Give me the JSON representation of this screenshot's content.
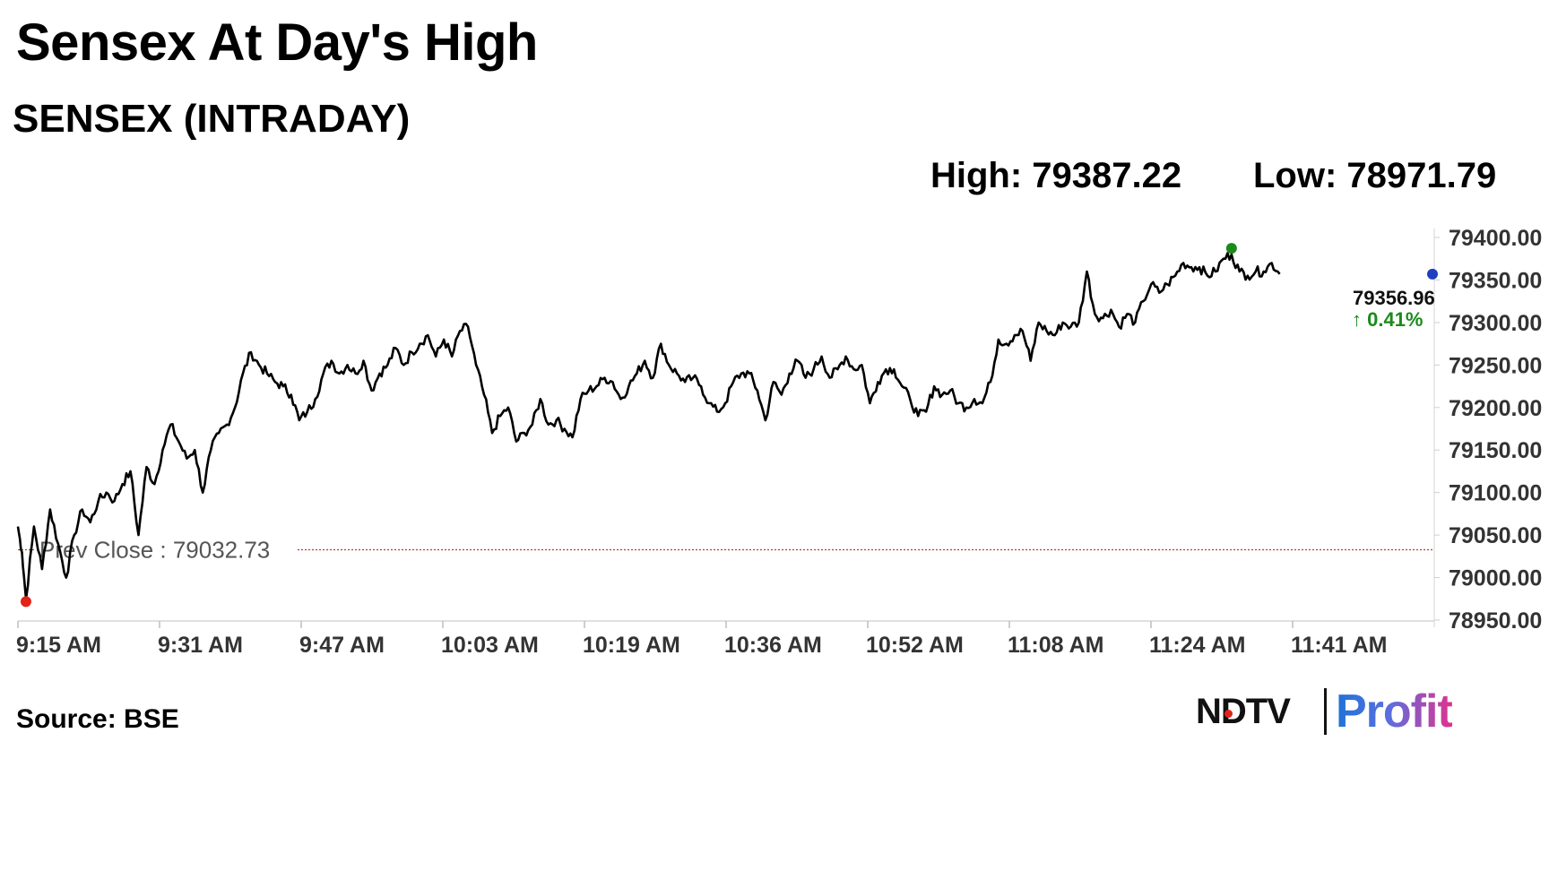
{
  "headline": "Sensex At Day's High",
  "source": "Source: BSE",
  "brand": {
    "left": "NDTV",
    "right": "Profit"
  },
  "colors": {
    "line": "#000000",
    "prev_close": "#c0392b",
    "up": "#1a8a1a",
    "high_marker": "#1a8a1a",
    "low_marker": "#e2231a",
    "last_marker": "#1f3fbf",
    "brand_blue": "#1e73d6",
    "brand_pink": "#e0328f"
  },
  "chart_data": {
    "type": "line",
    "title": "SENSEX (INTRADAY)",
    "stats": {
      "high_label": "High: 79387.22",
      "low_label": "Low: 78971.79"
    },
    "x_tick_labels": [
      "9:15 AM",
      "9:31 AM",
      "9:47 AM",
      "10:03 AM",
      "10:19 AM",
      "10:36 AM",
      "10:52 AM",
      "11:08 AM",
      "11:24 AM",
      "11:41 AM"
    ],
    "x_range_minutes": [
      0,
      176
    ],
    "y_tick_labels": [
      "79400.00",
      "79350.00",
      "79300.00",
      "79250.00",
      "79200.00",
      "79150.00",
      "79100.00",
      "79050.00",
      "79000.00",
      "78950.00"
    ],
    "ylim": [
      78950,
      79400
    ],
    "grid": false,
    "prev_close": {
      "label": "Prev Close : 79032.73",
      "value": 79032.73
    },
    "last": {
      "value_label": "79356.96",
      "change_label": "0.41%",
      "value": 79356.96,
      "x_minutes": 176
    },
    "high_point": {
      "x_minutes": 151,
      "value": 79387.22
    },
    "low_point": {
      "x_minutes": 1,
      "value": 78971.79
    },
    "series": [
      {
        "x_minutes": [
          0,
          0.5,
          1,
          2,
          3,
          4,
          5,
          6,
          7,
          8,
          9,
          10,
          11,
          12,
          13,
          14,
          15,
          16,
          17,
          18,
          19,
          20,
          21,
          22,
          23,
          24,
          25,
          26,
          27,
          28,
          29,
          30,
          31,
          32,
          33,
          34,
          35,
          36,
          37,
          38,
          39,
          40,
          41,
          42,
          43,
          44,
          45,
          46,
          47,
          48,
          49,
          50,
          51,
          52,
          53,
          54,
          55,
          56,
          57,
          58,
          59,
          60,
          61,
          62,
          63,
          64,
          65,
          66,
          67,
          68,
          69,
          70,
          71,
          72,
          73,
          74,
          75,
          76,
          77,
          78,
          79,
          80,
          81,
          82,
          83,
          84,
          85,
          86,
          87,
          88,
          89,
          90,
          91,
          92,
          93,
          94,
          95,
          96,
          97,
          98,
          99,
          100,
          101,
          102,
          103,
          104,
          105,
          106,
          107,
          108,
          109,
          110,
          111,
          112,
          113,
          114,
          115,
          116,
          117,
          118,
          119,
          120,
          121,
          122,
          123,
          124,
          125,
          126,
          127,
          128,
          129,
          130,
          131,
          132,
          133,
          134,
          135,
          136,
          137,
          138,
          139,
          140,
          141,
          142,
          143,
          144,
          145,
          146,
          147,
          148,
          149,
          150,
          151,
          152,
          153,
          154,
          155,
          156,
          157
        ],
        "values": [
          79060,
          79030,
          78975,
          79060,
          79010,
          79080,
          79040,
          79000,
          79050,
          79080,
          79065,
          79090,
          79100,
          79090,
          79110,
          79125,
          79050,
          79130,
          79110,
          79150,
          79180,
          79160,
          79140,
          79150,
          79100,
          79150,
          79170,
          79180,
          79200,
          79240,
          79265,
          79250,
          79240,
          79230,
          79225,
          79215,
          79185,
          79195,
          79210,
          79240,
          79255,
          79240,
          79250,
          79240,
          79255,
          79220,
          79240,
          79250,
          79270,
          79250,
          79265,
          79275,
          79285,
          79260,
          79280,
          79260,
          79290,
          79295,
          79250,
          79215,
          79170,
          79190,
          79200,
          79160,
          79170,
          79180,
          79210,
          79180,
          79185,
          79175,
          79165,
          79210,
          79220,
          79225,
          79235,
          79230,
          79210,
          79225,
          79240,
          79255,
          79235,
          79275,
          79250,
          79240,
          79230,
          79235,
          79225,
          79205,
          79195,
          79205,
          79230,
          79240,
          79240,
          79220,
          79185,
          79230,
          79215,
          79240,
          79255,
          79235,
          79245,
          79260,
          79235,
          79245,
          79260,
          79245,
          79250,
          79205,
          79230,
          79245,
          79245,
          79225,
          79210,
          79190,
          79195,
          79225,
          79215,
          79220,
          79205,
          79200,
          79210,
          79205,
          79230,
          79280,
          79275,
          79285,
          79290,
          79255,
          79300,
          79290,
          79285,
          79300,
          79295,
          79300,
          79360,
          79310,
          79305,
          79315,
          79295,
          79310,
          79300,
          79325,
          79345,
          79335,
          79345,
          79355,
          79370,
          79365,
          79365,
          79355,
          79360,
          79375,
          79380,
          79360,
          79355,
          79360,
          79360,
          79370,
          79357
        ]
      }
    ]
  }
}
